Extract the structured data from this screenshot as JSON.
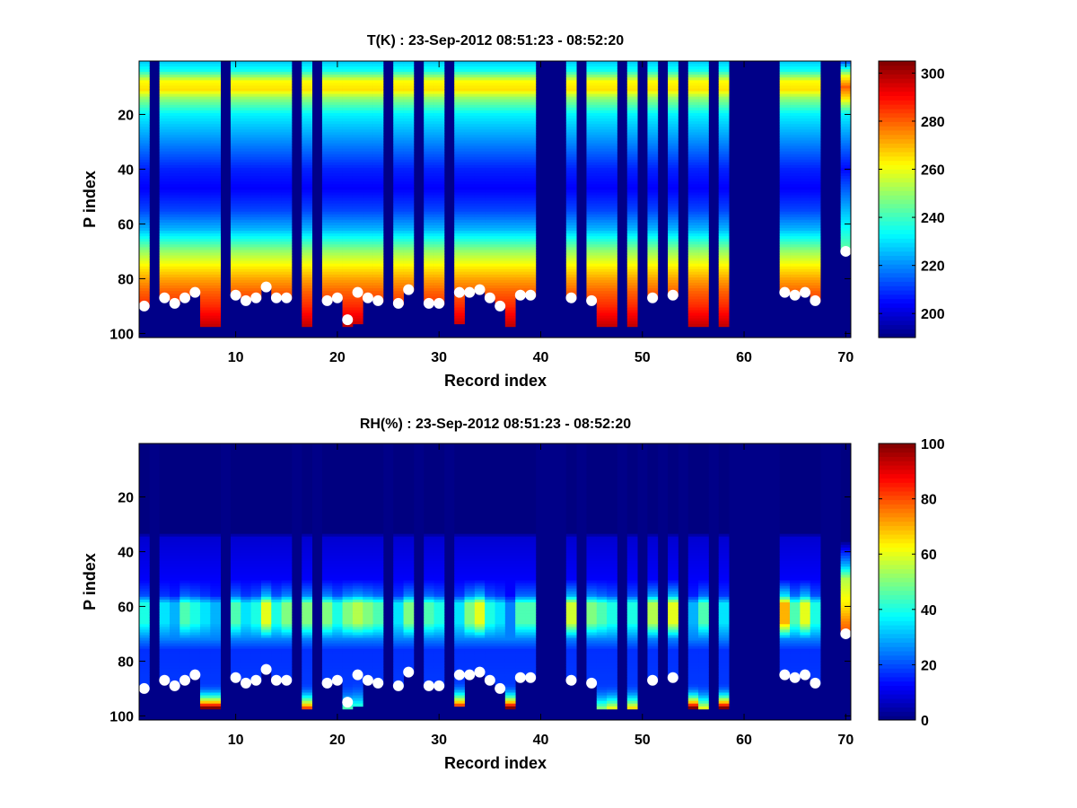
{
  "chart_data": [
    {
      "type": "heatmap",
      "title": "T(K) : 23-Sep-2012 08:51:23 - 08:52:20",
      "xlabel": "Record index",
      "ylabel": "P index",
      "xlim": [
        0.5,
        70.5
      ],
      "ylim": [
        0.5,
        101.5
      ],
      "y_reversed": true,
      "xticks": [
        "10",
        "20",
        "30",
        "40",
        "50",
        "60",
        "70"
      ],
      "yticks": [
        "20",
        "40",
        "60",
        "80",
        "100"
      ],
      "clim": [
        190,
        305
      ],
      "colorbar_ticks": [
        "200",
        "220",
        "240",
        "260",
        "280",
        "300"
      ],
      "colormap": "jet",
      "profile_knots": [
        [
          1,
          228
        ],
        [
          4,
          235
        ],
        [
          8,
          262
        ],
        [
          11,
          265
        ],
        [
          14,
          250
        ],
        [
          20,
          232
        ],
        [
          30,
          220
        ],
        [
          40,
          208
        ],
        [
          47,
          204
        ],
        [
          55,
          212
        ],
        [
          62,
          225
        ],
        [
          70,
          250
        ],
        [
          75,
          262
        ],
        [
          80,
          272
        ],
        [
          85,
          280
        ],
        [
          90,
          286
        ],
        [
          97,
          297
        ]
      ],
      "record70_knots": [
        [
          1,
          215
        ],
        [
          6,
          260
        ],
        [
          10,
          280
        ],
        [
          14,
          265
        ],
        [
          20,
          232
        ],
        [
          40,
          205
        ],
        [
          55,
          225
        ],
        [
          70,
          245
        ]
      ]
    },
    {
      "type": "heatmap",
      "title": "RH(%) : 23-Sep-2012 08:51:23 - 08:52:20",
      "xlabel": "Record index",
      "ylabel": "P index",
      "xlim": [
        0.5,
        70.5
      ],
      "ylim": [
        0.5,
        101.5
      ],
      "y_reversed": true,
      "xticks": [
        "10",
        "20",
        "30",
        "40",
        "50",
        "60",
        "70"
      ],
      "yticks": [
        "20",
        "40",
        "60",
        "80",
        "100"
      ],
      "clim": [
        0,
        100
      ],
      "colorbar_ticks": [
        "0",
        "20",
        "40",
        "60",
        "80",
        "100"
      ],
      "colormap": "jet",
      "record70_knots": [
        [
          1,
          0
        ],
        [
          36,
          0
        ],
        [
          40,
          15
        ],
        [
          45,
          30
        ],
        [
          50,
          55
        ],
        [
          60,
          65
        ],
        [
          66,
          75
        ],
        [
          70,
          80
        ]
      ]
    }
  ],
  "records": [
    {
      "r": 1,
      "surface": 90,
      "rh_peak": 40
    },
    {
      "r": 3,
      "surface": 87,
      "rh_peak": 35
    },
    {
      "r": 4,
      "surface": 89,
      "rh_peak": 30
    },
    {
      "r": 5,
      "surface": 87,
      "rh_peak": 45
    },
    {
      "r": 6,
      "surface": 85,
      "rh_peak": 40
    },
    {
      "r": 7,
      "surface": null,
      "fill_to": 97,
      "rh_peak": 35,
      "rh_bottom": 100
    },
    {
      "r": 8,
      "surface": null,
      "fill_to": 97,
      "rh_peak": 30,
      "rh_bottom": 100
    },
    {
      "r": 10,
      "surface": 86,
      "rh_peak": 45
    },
    {
      "r": 11,
      "surface": 88,
      "rh_peak": 35
    },
    {
      "r": 12,
      "surface": 87,
      "rh_peak": 40
    },
    {
      "r": 13,
      "surface": 83,
      "rh_peak": 60
    },
    {
      "r": 14,
      "surface": 87,
      "rh_peak": 40
    },
    {
      "r": 15,
      "surface": 87,
      "rh_peak": 50
    },
    {
      "r": 17,
      "surface": null,
      "fill_to": 97,
      "rh_peak": 50,
      "rh_bottom": 80
    },
    {
      "r": 19,
      "surface": 88,
      "rh_peak": 50
    },
    {
      "r": 20,
      "surface": 87,
      "rh_peak": 40
    },
    {
      "r": 21,
      "surface": 95,
      "fill_to": 97,
      "rh_peak": 50,
      "rh_bottom": 45
    },
    {
      "r": 22,
      "surface": 85,
      "fill_to": 96,
      "rh_peak": 55,
      "rh_bottom": 40
    },
    {
      "r": 23,
      "surface": 87,
      "rh_peak": 50
    },
    {
      "r": 24,
      "surface": 88,
      "rh_peak": 45
    },
    {
      "r": 26,
      "surface": 89,
      "rh_peak": 35
    },
    {
      "r": 27,
      "surface": 84,
      "rh_peak": 50
    },
    {
      "r": 29,
      "surface": 89,
      "rh_peak": 45
    },
    {
      "r": 30,
      "surface": 89,
      "rh_peak": 40
    },
    {
      "r": 32,
      "surface": 85,
      "fill_to": 96,
      "rh_peak": 35,
      "rh_bottom": 80
    },
    {
      "r": 33,
      "surface": 85,
      "rh_peak": 50
    },
    {
      "r": 34,
      "surface": 84,
      "rh_peak": 60
    },
    {
      "r": 35,
      "surface": 87,
      "rh_peak": 40
    },
    {
      "r": 36,
      "surface": 90,
      "rh_peak": 35
    },
    {
      "r": 37,
      "surface": null,
      "fill_to": 97,
      "rh_peak": 25,
      "rh_bottom": 100
    },
    {
      "r": 38,
      "surface": 86,
      "rh_peak": 45
    },
    {
      "r": 39,
      "surface": 86,
      "rh_peak": 45
    },
    {
      "r": 43,
      "surface": 87,
      "rh_peak": 58
    },
    {
      "r": 45,
      "surface": 88,
      "rh_peak": 50
    },
    {
      "r": 46,
      "surface": null,
      "fill_to": 97,
      "rh_peak": 45,
      "rh_bottom": 50
    },
    {
      "r": 47,
      "surface": null,
      "fill_to": 97,
      "rh_peak": 40,
      "rh_bottom": 60
    },
    {
      "r": 49,
      "surface": null,
      "fill_to": 97,
      "rh_peak": 40,
      "rh_bottom": 65
    },
    {
      "r": 51,
      "surface": 87,
      "rh_peak": 55
    },
    {
      "r": 53,
      "surface": 86,
      "rh_peak": 60
    },
    {
      "r": 55,
      "surface": null,
      "fill_to": 97,
      "rh_peak": 30,
      "rh_bottom": 100
    },
    {
      "r": 56,
      "surface": null,
      "fill_to": 97,
      "rh_peak": 45,
      "rh_bottom": 60
    },
    {
      "r": 58,
      "surface": null,
      "fill_to": 97,
      "rh_peak": 35,
      "rh_bottom": 100
    },
    {
      "r": 64,
      "surface": 85,
      "rh_peak": 70
    },
    {
      "r": 65,
      "surface": 86,
      "rh_peak": 45
    },
    {
      "r": 66,
      "surface": 85,
      "rh_peak": 60
    },
    {
      "r": 67,
      "surface": 88,
      "rh_peak": 40
    },
    {
      "r": 70,
      "surface": 70,
      "custom": true
    }
  ],
  "colors": {
    "missing": "#000088",
    "marker": "#ffffff"
  }
}
